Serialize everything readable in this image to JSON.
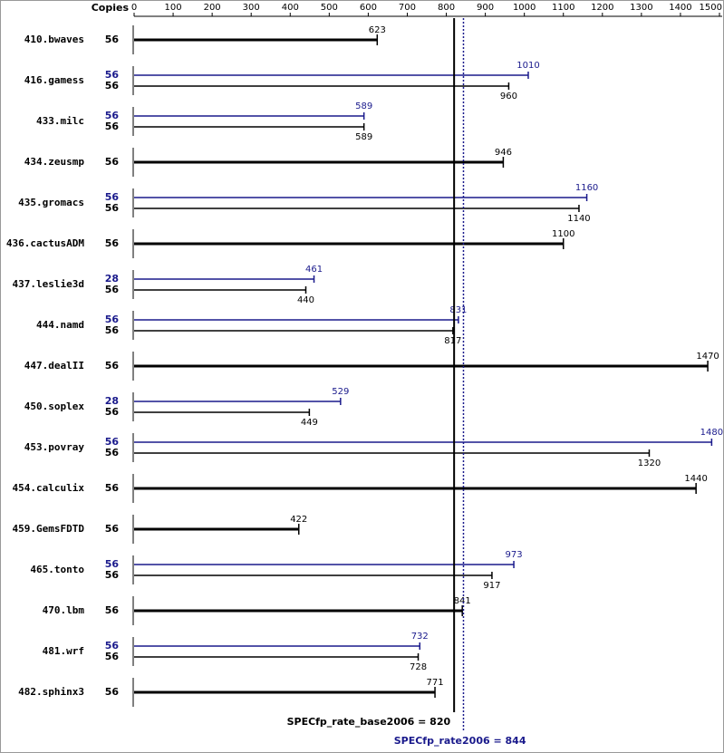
{
  "chart_data": {
    "type": "bar",
    "orientation": "horizontal",
    "copies_header": "Copies",
    "categories": [
      "410.bwaves",
      "416.gamess",
      "433.milc",
      "434.zeusmp",
      "435.gromacs",
      "436.cactusADM",
      "437.leslie3d",
      "444.namd",
      "447.dealII",
      "450.soplex",
      "453.povray",
      "454.calculix",
      "459.GemsFDTD",
      "465.tonto",
      "470.lbm",
      "481.wrf",
      "482.sphinx3"
    ],
    "series": [
      {
        "color": "#1a1a8c",
        "copies": [
          null,
          56,
          56,
          null,
          56,
          null,
          28,
          56,
          null,
          28,
          56,
          null,
          null,
          56,
          null,
          56,
          null
        ],
        "values": [
          null,
          1010,
          589,
          null,
          1160,
          null,
          461,
          831,
          null,
          529,
          1480,
          null,
          null,
          973,
          null,
          732,
          null
        ]
      },
      {
        "color": "#000000",
        "copies": [
          56,
          56,
          56,
          56,
          56,
          56,
          56,
          56,
          56,
          56,
          56,
          56,
          56,
          56,
          56,
          56,
          56
        ],
        "values": [
          623,
          960,
          589,
          946,
          1140,
          1100,
          440,
          817,
          1470,
          449,
          1320,
          1440,
          422,
          917,
          841,
          728,
          771
        ]
      }
    ],
    "xlim": [
      0,
      1500
    ],
    "xticks": [
      0,
      100,
      200,
      300,
      400,
      500,
      600,
      700,
      800,
      900,
      1000,
      1100,
      1200,
      1300,
      1400,
      1500
    ],
    "reference_lines": [
      {
        "value": 820,
        "label": "SPECfp_rate_base2006 = 820",
        "color": "#000000",
        "dash": false
      },
      {
        "value": 844,
        "label": "SPECfp_rate2006 = 844",
        "color": "#1a1a8c",
        "dash": true
      }
    ]
  }
}
